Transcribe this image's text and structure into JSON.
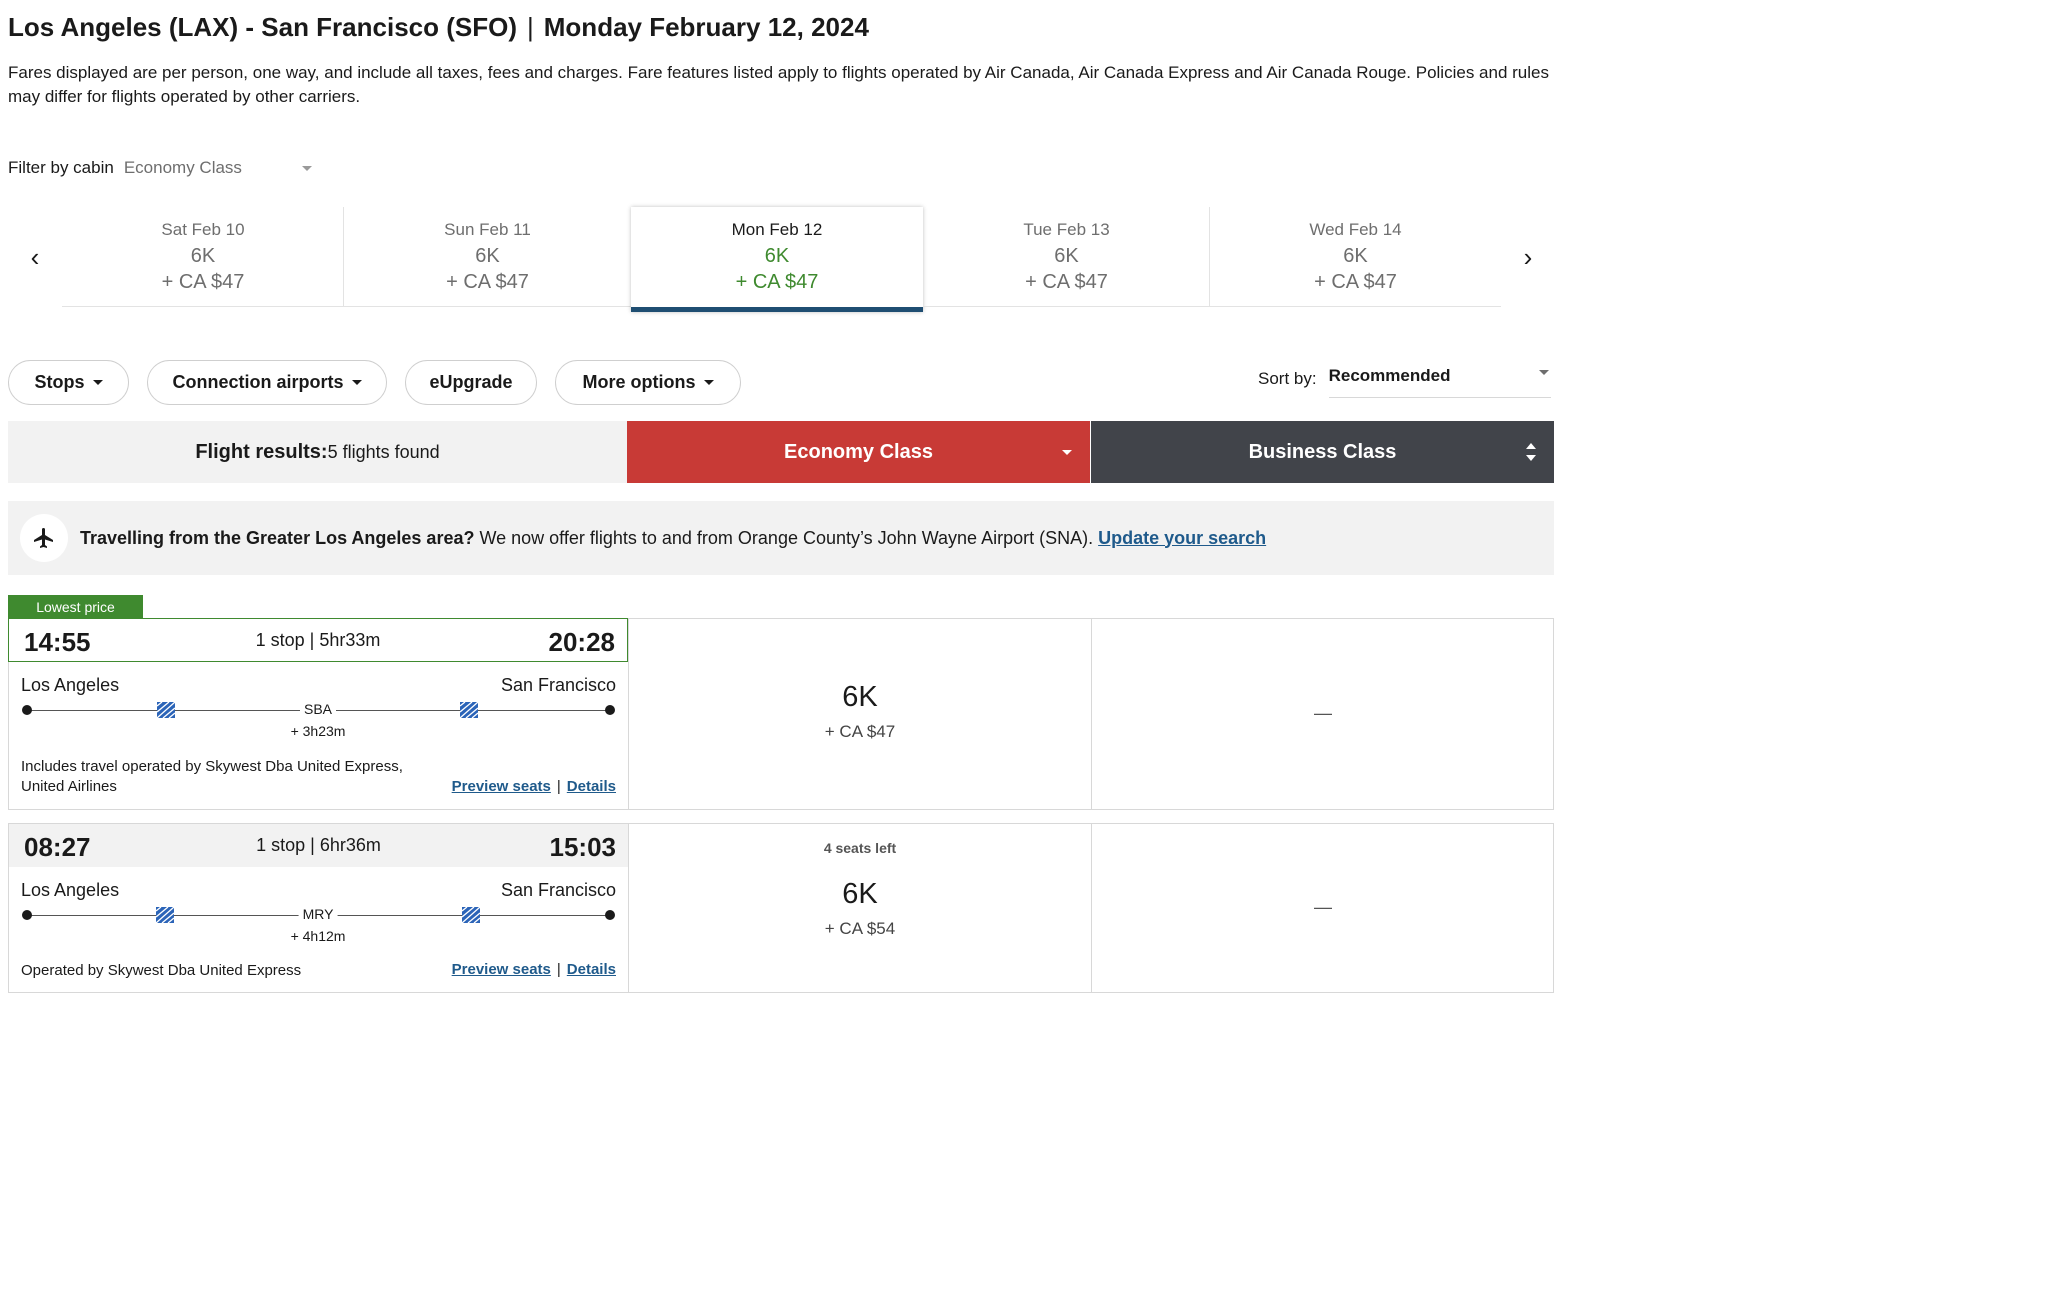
{
  "header": {
    "route": "Los Angeles (LAX) - San Francisco (SFO)",
    "separator": "|",
    "date": "Monday February 12, 2024",
    "disclaimer": "Fares displayed are per person, one way, and include all taxes, fees and charges. Fare features listed apply to flights operated by Air Canada, Air Canada Express and Air Canada Rouge. Policies and rules may differ for flights operated by other carriers."
  },
  "cabin_filter": {
    "label": "Filter by cabin",
    "value": "Economy Class"
  },
  "carousel": {
    "prev_icon": "chevron-left-icon",
    "next_icon": "chevron-right-icon",
    "dates": [
      {
        "label": "Sat Feb 10",
        "points": "6K",
        "fee": "+ CA $47",
        "active": false
      },
      {
        "label": "Sun Feb 11",
        "points": "6K",
        "fee": "+ CA $47",
        "active": false
      },
      {
        "label": "Mon Feb 12",
        "points": "6K",
        "fee": "+ CA $47",
        "active": true
      },
      {
        "label": "Tue Feb 13",
        "points": "6K",
        "fee": "+ CA $47",
        "active": false
      },
      {
        "label": "Wed Feb 14",
        "points": "6K",
        "fee": "+ CA $47",
        "active": false
      }
    ]
  },
  "filters": {
    "stops": "Stops",
    "connection_airports": "Connection airports",
    "eupgrade": "eUpgrade",
    "more_options": "More options"
  },
  "sort": {
    "label": "Sort by:",
    "value": "Recommended"
  },
  "results": {
    "label": "Flight results:",
    "count": "5 flights found",
    "economy_tab": "Economy Class",
    "business_tab": "Business Class"
  },
  "banner": {
    "icon": "airplane-icon",
    "bold": "Travelling from the Greater Los Angeles area?",
    "text": " We now offer flights to and from Orange County’s John Wayne Airport (SNA). ",
    "link": "Update your search"
  },
  "flights": [
    {
      "badge": "Lowest price",
      "depart": "14:55",
      "arrive": "20:28",
      "summary": "1 stop | 5hr33m",
      "from": "Los Angeles",
      "to": "San Francisco",
      "connection": "SBA",
      "layover": "+ 3h23m",
      "operated": "Includes travel operated by Skywest Dba United Express, United Airlines",
      "preview_seats": "Preview seats",
      "link_sep": "|",
      "details": "Details",
      "economy_seats_left": "",
      "economy_points": "6K",
      "economy_fee": "+ CA $47",
      "business": "—"
    },
    {
      "badge": "",
      "depart": "08:27",
      "arrive": "15:03",
      "summary": "1 stop | 6hr36m",
      "from": "Los Angeles",
      "to": "San Francisco",
      "connection": "MRY",
      "layover": "+ 4h12m",
      "operated": "Operated by Skywest Dba United Express",
      "preview_seats": "Preview seats",
      "link_sep": "|",
      "details": "Details",
      "economy_seats_left": "4 seats left",
      "economy_points": "6K",
      "economy_fee": "+ CA $54",
      "business": "—"
    }
  ],
  "colors": {
    "economy": "#c83a36",
    "business": "#41444a",
    "lowest_price": "#3f8a2f",
    "link": "#1f5a8b",
    "active_date_bar": "#1f4e72"
  }
}
